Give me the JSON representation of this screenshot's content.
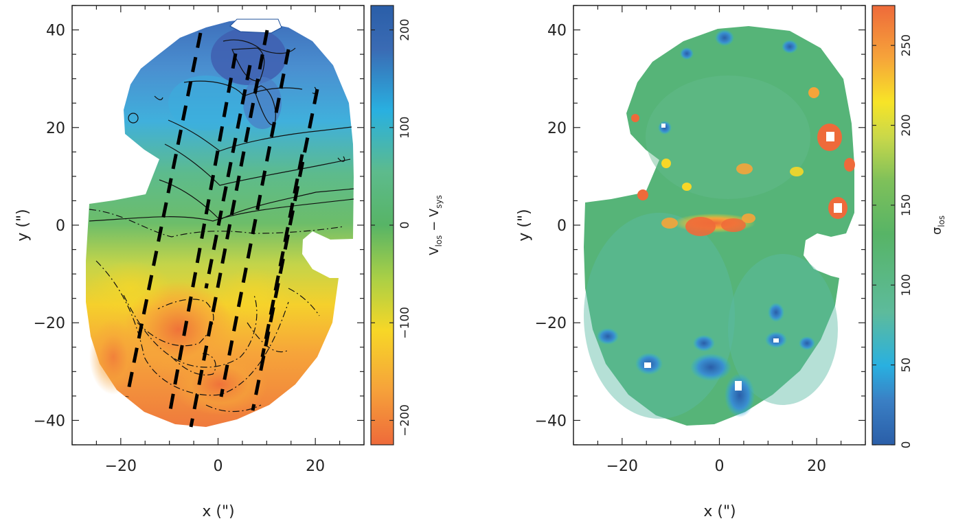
{
  "chart_data": [
    {
      "type": "heatmap",
      "quantity": "line-of-sight velocity map",
      "xlabel": "x (\")",
      "ylabel": "y (\")",
      "xlim": [
        -30,
        30
      ],
      "ylim": [
        -45,
        45
      ],
      "x_ticks": [
        -20,
        0,
        20
      ],
      "y_ticks": [
        -40,
        -20,
        0,
        20,
        40
      ],
      "colorbar": {
        "label_main": "V",
        "label_sub1": "los",
        "label_mid": " − V",
        "label_sub2": "sys",
        "range": [
          -225,
          225
        ],
        "ticks": [
          -200,
          -100,
          0,
          100,
          200
        ],
        "colors": [
          "#ee6a3a",
          "#f6a43a",
          "#f7d727",
          "#a9cf46",
          "#57b466",
          "#5dbb8c",
          "#29b0e0",
          "#3a6bb4",
          "#2a5ea8"
        ]
      },
      "features": {
        "receding_side": "north (positive y), blue",
        "approaching_side": "south (negative y), orange/red",
        "dashed_slit_lines": 7,
        "solid_contours": "positive velocities",
        "dash_dot_contours": "negative velocities"
      }
    },
    {
      "type": "heatmap",
      "quantity": "line-of-sight velocity dispersion map",
      "xlabel": "x (\")",
      "ylabel": "y (\")",
      "xlim": [
        -30,
        30
      ],
      "ylim": [
        -45,
        45
      ],
      "x_ticks": [
        -20,
        0,
        20
      ],
      "y_ticks": [
        -40,
        -20,
        0,
        20,
        40
      ],
      "colorbar": {
        "label_main": "σ",
        "label_sub": "los",
        "range": [
          0,
          275
        ],
        "ticks": [
          0,
          50,
          100,
          150,
          200,
          250
        ],
        "colors": [
          "#2a5ea8",
          "#3a7fc4",
          "#29b0e0",
          "#5dbb9c",
          "#57b466",
          "#7ec05a",
          "#c9d84a",
          "#f7e427",
          "#f6a43a",
          "#ee6a3a"
        ]
      },
      "features": {
        "typical_value": "~110-140",
        "central_peak": "~200-250 near x=0, y=0",
        "low_patches": "south edge, ~20-50"
      }
    }
  ]
}
